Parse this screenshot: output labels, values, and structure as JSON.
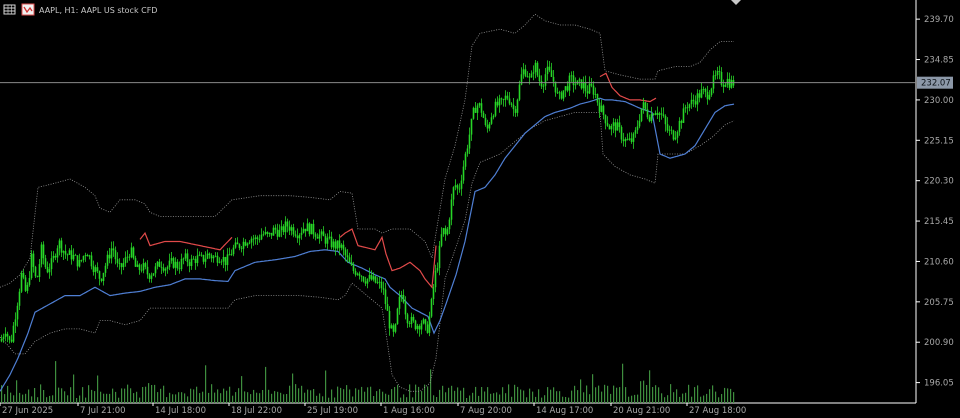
{
  "header": {
    "title": "AAPL, H1: AAPL US stock CFD",
    "icons": [
      "grid-icon",
      "chart-window-icon"
    ],
    "collapse_icon": "triangle-down-icon"
  },
  "colors": {
    "background": "#000000",
    "axis": "#ffffff",
    "candle": "#27d627",
    "upper_band": "#e24a4a",
    "lower_band": "#4f7fd4",
    "envelope": "#9a9a9a",
    "volume": "#3e8e3e",
    "price_line": "#8a8a8a",
    "price_label_bg": "#8c98a8"
  },
  "chart_data": {
    "type": "candlestick",
    "symbol": "AAPL",
    "timeframe": "H1",
    "y_ticks": [
      "239.70",
      "234.85",
      "230.00",
      "225.15",
      "220.30",
      "215.45",
      "210.60",
      "205.75",
      "200.90",
      "196.05"
    ],
    "ylim": [
      193.6,
      242.0
    ],
    "x_ticks": [
      "27 Jun 2025",
      "7 Jul 21:00",
      "14 Jul 18:00",
      "18 Jul 22:00",
      "25 Jul 19:00",
      "1 Aug 16:00",
      "7 Aug 20:00",
      "14 Aug 17:00",
      "20 Aug 21:00",
      "27 Aug 18:00"
    ],
    "current_price": "232.07",
    "close_path": [
      [
        0,
        201.0
      ],
      [
        5,
        202.5
      ],
      [
        10,
        200.6
      ],
      [
        16,
        205.0
      ],
      [
        21,
        209.0
      ],
      [
        26,
        206.5
      ],
      [
        31,
        211.0
      ],
      [
        36,
        208.0
      ],
      [
        41,
        212.0
      ],
      [
        46,
        209.5
      ],
      [
        52,
        210.5
      ],
      [
        58,
        213.0
      ],
      [
        65,
        211.5
      ],
      [
        72,
        211.3
      ],
      [
        79,
        210.3
      ],
      [
        86,
        212.0
      ],
      [
        93,
        210.0
      ],
      [
        100,
        208.5
      ],
      [
        106,
        210.5
      ],
      [
        112,
        212.5
      ],
      [
        118,
        209.5
      ],
      [
        124,
        210.5
      ],
      [
        130,
        212.0
      ],
      [
        136,
        209.5
      ],
      [
        142,
        210.0
      ],
      [
        148,
        209.0
      ],
      [
        154,
        209.5
      ],
      [
        160,
        210.5
      ],
      [
        166,
        209.8
      ],
      [
        172,
        210.5
      ],
      [
        178,
        210.0
      ],
      [
        184,
        211.0
      ],
      [
        190,
        210.5
      ],
      [
        196,
        211.0
      ],
      [
        202,
        210.8
      ],
      [
        208,
        211.5
      ],
      [
        214,
        211.0
      ],
      [
        220,
        211.3
      ],
      [
        226,
        210.5
      ],
      [
        232,
        212.0
      ],
      [
        238,
        212.5
      ],
      [
        244,
        213.0
      ],
      [
        250,
        213.5
      ],
      [
        256,
        213.2
      ],
      [
        262,
        214.0
      ],
      [
        268,
        213.5
      ],
      [
        274,
        214.5
      ],
      [
        280,
        214.0
      ],
      [
        286,
        215.0
      ],
      [
        292,
        214.5
      ],
      [
        298,
        214.0
      ],
      [
        304,
        214.8
      ],
      [
        310,
        214.5
      ],
      [
        316,
        214.0
      ],
      [
        322,
        213.5
      ],
      [
        328,
        213.0
      ],
      [
        334,
        212.5
      ],
      [
        340,
        212.5
      ],
      [
        346,
        211.0
      ],
      [
        352,
        209.5
      ],
      [
        358,
        209.5
      ],
      [
        364,
        208.5
      ],
      [
        370,
        208.5
      ],
      [
        376,
        208.0
      ],
      [
        382,
        207.5
      ],
      [
        386,
        205.0
      ],
      [
        390,
        202.5
      ],
      [
        394,
        201.5
      ],
      [
        398,
        205.5
      ],
      [
        402,
        207.0
      ],
      [
        406,
        204.0
      ],
      [
        410,
        203.5
      ],
      [
        414,
        203.0
      ],
      [
        418,
        203.0
      ],
      [
        422,
        203.5
      ],
      [
        426,
        202.0
      ],
      [
        430,
        204.5
      ],
      [
        434,
        208.5
      ],
      [
        438,
        211.0
      ],
      [
        442,
        214.5
      ],
      [
        446,
        213.5
      ],
      [
        450,
        217.0
      ],
      [
        454,
        220.0
      ],
      [
        458,
        219.0
      ],
      [
        462,
        221.5
      ],
      [
        466,
        224.0
      ],
      [
        470,
        226.5
      ],
      [
        474,
        229.0
      ],
      [
        478,
        229.5
      ],
      [
        482,
        228.5
      ],
      [
        486,
        226.0
      ],
      [
        490,
        228.0
      ],
      [
        494,
        229.0
      ],
      [
        498,
        229.5
      ],
      [
        502,
        229.5
      ],
      [
        506,
        230.5
      ],
      [
        510,
        230.0
      ],
      [
        514,
        228.5
      ],
      [
        518,
        231.0
      ],
      [
        522,
        233.5
      ],
      [
        526,
        233.5
      ],
      [
        530,
        232.0
      ],
      [
        534,
        234.5
      ],
      [
        538,
        232.5
      ],
      [
        542,
        232.0
      ],
      [
        546,
        233.5
      ],
      [
        550,
        233.0
      ],
      [
        554,
        232.0
      ],
      [
        558,
        230.0
      ],
      [
        562,
        231.0
      ],
      [
        566,
        231.5
      ],
      [
        570,
        232.5
      ],
      [
        574,
        232.0
      ],
      [
        578,
        231.8
      ],
      [
        582,
        232.0
      ],
      [
        586,
        231.0
      ],
      [
        590,
        231.5
      ],
      [
        594,
        231.0
      ],
      [
        598,
        229.5
      ],
      [
        602,
        228.5
      ],
      [
        606,
        227.5
      ],
      [
        610,
        226.5
      ],
      [
        614,
        227.0
      ],
      [
        618,
        226.5
      ],
      [
        622,
        225.5
      ],
      [
        626,
        225.0
      ],
      [
        630,
        225.0
      ],
      [
        634,
        225.5
      ],
      [
        638,
        227.5
      ],
      [
        642,
        229.5
      ],
      [
        646,
        228.5
      ],
      [
        650,
        228.0
      ],
      [
        654,
        229.0
      ],
      [
        658,
        228.5
      ],
      [
        662,
        228.0
      ],
      [
        666,
        226.5
      ],
      [
        670,
        226.0
      ],
      [
        674,
        225.8
      ],
      [
        678,
        227.0
      ],
      [
        682,
        228.0
      ],
      [
        686,
        229.5
      ],
      [
        690,
        229.5
      ],
      [
        694,
        230.0
      ],
      [
        698,
        230.5
      ],
      [
        702,
        231.0
      ],
      [
        706,
        230.5
      ],
      [
        710,
        231.5
      ],
      [
        714,
        232.5
      ],
      [
        718,
        233.0
      ],
      [
        722,
        232.0
      ],
      [
        726,
        232.5
      ],
      [
        730,
        232.0
      ],
      [
        734,
        232.07
      ]
    ],
    "upper_band_path": [
      [
        0,
        209.0
      ],
      [
        10,
        210.0
      ],
      [
        22,
        214.0
      ],
      [
        40,
        214.5
      ],
      [
        60,
        213.8
      ],
      [
        85,
        213.8
      ],
      [
        100,
        213.0
      ],
      [
        110,
        213.5
      ],
      [
        120,
        212.5
      ],
      [
        135,
        212.5
      ],
      [
        145,
        214.0
      ],
      [
        150,
        212.5
      ],
      [
        165,
        213.0
      ],
      [
        180,
        213.0
      ],
      [
        200,
        212.5
      ],
      [
        220,
        212.0
      ],
      [
        232,
        213.5
      ],
      [
        260,
        214.3
      ],
      [
        290,
        215.0
      ],
      [
        320,
        214.8
      ],
      [
        340,
        213.5
      ],
      [
        345,
        214.0
      ],
      [
        352,
        214.5
      ],
      [
        358,
        212.5
      ],
      [
        375,
        212.0
      ],
      [
        382,
        213.5
      ],
      [
        386,
        211.5
      ],
      [
        392,
        209.5
      ],
      [
        400,
        209.8
      ],
      [
        410,
        210.5
      ],
      [
        420,
        209.5
      ],
      [
        425,
        208.5
      ],
      [
        432,
        207.5
      ],
      [
        436,
        212.5
      ],
      [
        445,
        215.0
      ],
      [
        460,
        224.0
      ],
      [
        470,
        231.0
      ],
      [
        480,
        231.5
      ],
      [
        500,
        231.3
      ],
      [
        520,
        234.5
      ],
      [
        540,
        234.5
      ],
      [
        560,
        233.5
      ],
      [
        580,
        233.5
      ],
      [
        600,
        232.8
      ],
      [
        606,
        233.2
      ],
      [
        612,
        231.5
      ],
      [
        620,
        230.5
      ],
      [
        630,
        230.0
      ],
      [
        640,
        230.0
      ],
      [
        650,
        229.8
      ],
      [
        660,
        230.5
      ],
      [
        675,
        230.8
      ],
      [
        690,
        231.0
      ],
      [
        705,
        232.0
      ],
      [
        720,
        233.0
      ],
      [
        734,
        233.0
      ]
    ],
    "lower_band_path": [
      [
        0,
        195.0
      ],
      [
        10,
        197.0
      ],
      [
        18,
        199.0
      ],
      [
        28,
        202.0
      ],
      [
        35,
        204.5
      ],
      [
        50,
        205.5
      ],
      [
        65,
        206.5
      ],
      [
        80,
        206.5
      ],
      [
        95,
        207.5
      ],
      [
        110,
        206.5
      ],
      [
        125,
        206.8
      ],
      [
        140,
        207.0
      ],
      [
        155,
        207.5
      ],
      [
        170,
        207.8
      ],
      [
        185,
        208.5
      ],
      [
        200,
        208.5
      ],
      [
        215,
        208.3
      ],
      [
        228,
        208.2
      ],
      [
        235,
        209.5
      ],
      [
        255,
        210.5
      ],
      [
        275,
        210.8
      ],
      [
        295,
        211.2
      ],
      [
        310,
        211.8
      ],
      [
        325,
        212.0
      ],
      [
        338,
        211.8
      ],
      [
        348,
        210.5
      ],
      [
        362,
        209.8
      ],
      [
        375,
        209.0
      ],
      [
        385,
        208.5
      ],
      [
        390,
        207.5
      ],
      [
        400,
        206.5
      ],
      [
        412,
        205.0
      ],
      [
        420,
        204.5
      ],
      [
        428,
        204.0
      ],
      [
        434,
        202.0
      ],
      [
        440,
        203.5
      ],
      [
        446,
        205.5
      ],
      [
        456,
        209.0
      ],
      [
        465,
        213.0
      ],
      [
        475,
        219.0
      ],
      [
        485,
        219.5
      ],
      [
        495,
        221.0
      ],
      [
        505,
        223.0
      ],
      [
        515,
        224.5
      ],
      [
        525,
        226.0
      ],
      [
        535,
        227.0
      ],
      [
        545,
        228.0
      ],
      [
        555,
        228.5
      ],
      [
        570,
        229.0
      ],
      [
        580,
        229.5
      ],
      [
        590,
        229.8
      ],
      [
        600,
        230.2
      ],
      [
        605,
        230.0
      ],
      [
        612,
        230.0
      ],
      [
        625,
        229.8
      ],
      [
        640,
        229.0
      ],
      [
        652,
        228.5
      ],
      [
        660,
        223.5
      ],
      [
        670,
        223.0
      ],
      [
        685,
        223.5
      ],
      [
        695,
        224.5
      ],
      [
        705,
        226.5
      ],
      [
        715,
        228.5
      ],
      [
        725,
        229.3
      ],
      [
        734,
        229.5
      ]
    ],
    "envelope_upper_path": [
      [
        0,
        207.5
      ],
      [
        10,
        208.0
      ],
      [
        20,
        209.0
      ],
      [
        30,
        211.0
      ],
      [
        38,
        219.5
      ],
      [
        55,
        220.0
      ],
      [
        70,
        220.5
      ],
      [
        85,
        219.5
      ],
      [
        95,
        218.5
      ],
      [
        100,
        217.0
      ],
      [
        110,
        216.5
      ],
      [
        120,
        218.0
      ],
      [
        135,
        218.0
      ],
      [
        145,
        217.5
      ],
      [
        150,
        216.5
      ],
      [
        160,
        216.0
      ],
      [
        175,
        216.0
      ],
      [
        195,
        216.0
      ],
      [
        215,
        216.0
      ],
      [
        232,
        218.0
      ],
      [
        260,
        218.5
      ],
      [
        290,
        218.5
      ],
      [
        310,
        218.3
      ],
      [
        330,
        218.0
      ],
      [
        340,
        219.0
      ],
      [
        352,
        218.8
      ],
      [
        358,
        214.5
      ],
      [
        375,
        214.5
      ],
      [
        382,
        214.0
      ],
      [
        392,
        214.5
      ],
      [
        410,
        214.5
      ],
      [
        425,
        213.0
      ],
      [
        432,
        211.0
      ],
      [
        436,
        214.0
      ],
      [
        445,
        220.5
      ],
      [
        455,
        224.5
      ],
      [
        465,
        230.0
      ],
      [
        472,
        236.5
      ],
      [
        480,
        238.0
      ],
      [
        500,
        238.5
      ],
      [
        515,
        238.0
      ],
      [
        525,
        239.0
      ],
      [
        535,
        240.3
      ],
      [
        545,
        239.5
      ],
      [
        560,
        239.0
      ],
      [
        575,
        239.0
      ],
      [
        590,
        238.5
      ],
      [
        600,
        238.0
      ],
      [
        605,
        233.5
      ],
      [
        620,
        233.0
      ],
      [
        640,
        232.5
      ],
      [
        655,
        232.5
      ],
      [
        658,
        233.5
      ],
      [
        675,
        234.0
      ],
      [
        690,
        234.0
      ],
      [
        700,
        234.5
      ],
      [
        710,
        236.0
      ],
      [
        720,
        237.0
      ],
      [
        734,
        237.0
      ]
    ],
    "envelope_lower_path": [
      [
        0,
        201.5
      ],
      [
        8,
        200.5
      ],
      [
        15,
        199.5
      ],
      [
        25,
        199.5
      ],
      [
        35,
        201.0
      ],
      [
        50,
        202.0
      ],
      [
        65,
        202.5
      ],
      [
        80,
        202.5
      ],
      [
        95,
        202.0
      ],
      [
        100,
        203.5
      ],
      [
        110,
        203.5
      ],
      [
        125,
        203.0
      ],
      [
        140,
        203.5
      ],
      [
        150,
        205.0
      ],
      [
        165,
        205.0
      ],
      [
        180,
        205.0
      ],
      [
        200,
        205.0
      ],
      [
        215,
        205.0
      ],
      [
        228,
        205.0
      ],
      [
        235,
        206.0
      ],
      [
        255,
        206.5
      ],
      [
        280,
        206.5
      ],
      [
        300,
        206.5
      ],
      [
        320,
        206.3
      ],
      [
        338,
        206.0
      ],
      [
        345,
        206.5
      ],
      [
        352,
        208.0
      ],
      [
        362,
        207.0
      ],
      [
        372,
        206.0
      ],
      [
        382,
        205.0
      ],
      [
        386,
        202.0
      ],
      [
        392,
        197.0
      ],
      [
        400,
        195.5
      ],
      [
        410,
        195.0
      ],
      [
        420,
        195.0
      ],
      [
        430,
        196.0
      ],
      [
        436,
        199.0
      ],
      [
        445,
        208.5
      ],
      [
        455,
        212.0
      ],
      [
        465,
        215.5
      ],
      [
        472,
        220.0
      ],
      [
        480,
        222.5
      ],
      [
        490,
        223.0
      ],
      [
        500,
        223.5
      ],
      [
        515,
        225.0
      ],
      [
        530,
        226.5
      ],
      [
        545,
        227.5
      ],
      [
        560,
        228.0
      ],
      [
        575,
        228.5
      ],
      [
        590,
        228.5
      ],
      [
        600,
        228.5
      ],
      [
        603,
        223.5
      ],
      [
        615,
        222.0
      ],
      [
        630,
        221.0
      ],
      [
        645,
        220.5
      ],
      [
        655,
        220.0
      ],
      [
        658,
        223.5
      ],
      [
        670,
        223.5
      ],
      [
        685,
        223.5
      ],
      [
        700,
        224.5
      ],
      [
        712,
        225.5
      ],
      [
        725,
        227.0
      ],
      [
        734,
        227.5
      ]
    ],
    "red_segments": [
      [
        140,
        232
      ],
      [
        340,
        436
      ],
      [
        600,
        656
      ]
    ]
  }
}
